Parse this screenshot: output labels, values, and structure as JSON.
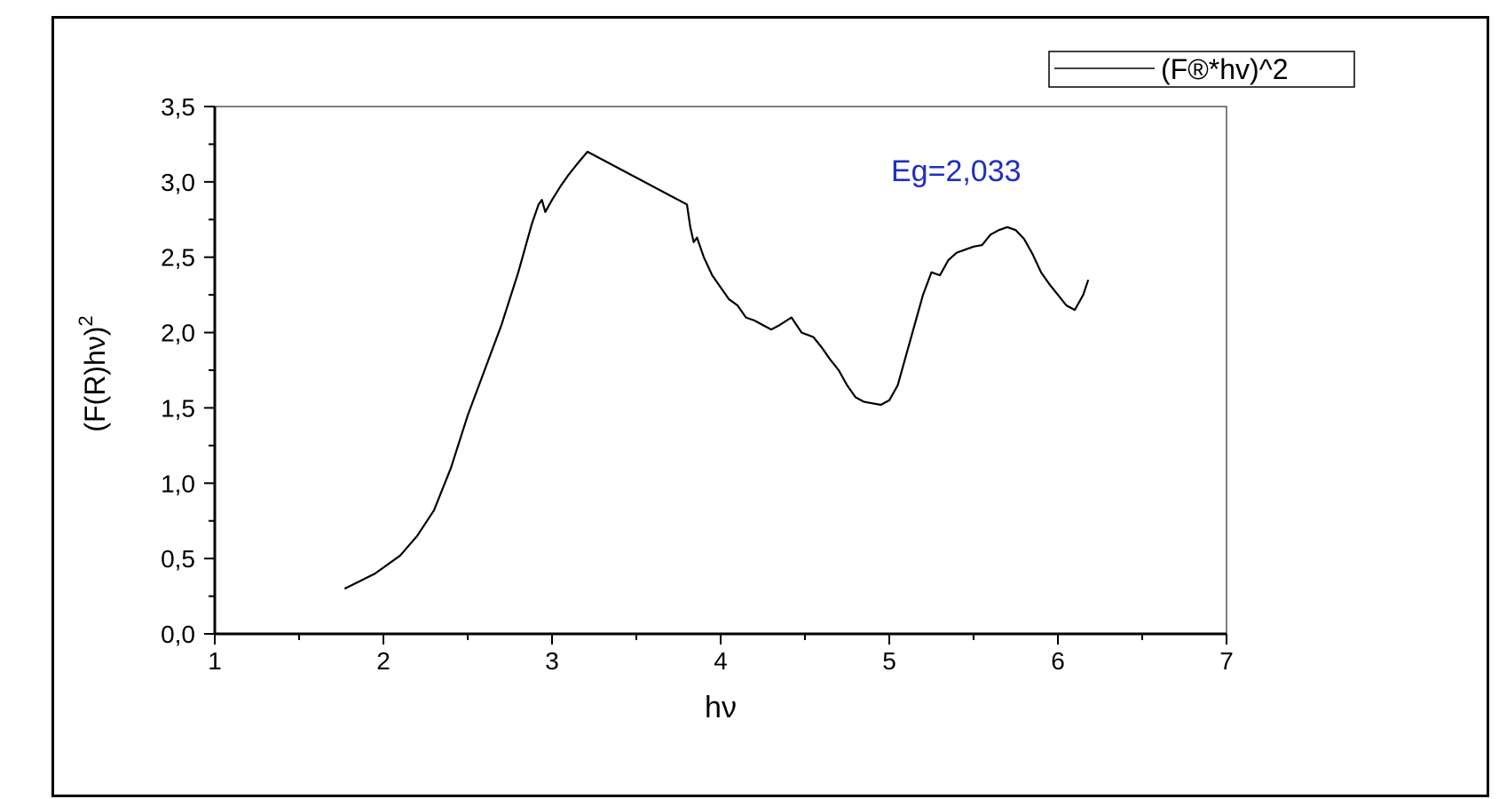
{
  "chart_data": {
    "type": "line",
    "title": "",
    "xlabel": "hν",
    "ylabel_main": "(F(R)hν)",
    "ylabel_sup": "2",
    "xlim": [
      1,
      7
    ],
    "ylim": [
      0,
      3.5
    ],
    "x_ticks": [
      1,
      2,
      3,
      4,
      5,
      6,
      7
    ],
    "x_tick_labels": [
      "1",
      "2",
      "3",
      "4",
      "5",
      "6",
      "7"
    ],
    "y_ticks": [
      0,
      0.5,
      1,
      1.5,
      2,
      2.5,
      3,
      3.5
    ],
    "y_tick_labels": [
      "0,0",
      "0,5",
      "1,0",
      "1,5",
      "2,0",
      "2,5",
      "3,0",
      "3,5"
    ],
    "legend_position": "top-right",
    "grid": false,
    "annotation": {
      "text": "Eg=2,033",
      "color": "#1f2fbf",
      "x": 4.0,
      "y": 3.05
    },
    "series": [
      {
        "name": "(F®*hv)^2",
        "color": "#000000",
        "points": [
          [
            1.77,
            0.3
          ],
          [
            1.95,
            0.4
          ],
          [
            2.1,
            0.52
          ],
          [
            2.2,
            0.65
          ],
          [
            2.3,
            0.82
          ],
          [
            2.4,
            1.1
          ],
          [
            2.5,
            1.45
          ],
          [
            2.6,
            1.75
          ],
          [
            2.7,
            2.05
          ],
          [
            2.8,
            2.4
          ],
          [
            2.88,
            2.72
          ],
          [
            2.92,
            2.85
          ],
          [
            2.94,
            2.88
          ],
          [
            2.96,
            2.8
          ],
          [
            3.0,
            2.88
          ],
          [
            3.05,
            2.97
          ],
          [
            3.1,
            3.05
          ],
          [
            3.15,
            3.12
          ],
          [
            3.21,
            3.2
          ],
          [
            3.8,
            2.85
          ],
          [
            3.82,
            2.7
          ],
          [
            3.84,
            2.6
          ],
          [
            3.86,
            2.63
          ],
          [
            3.9,
            2.5
          ],
          [
            3.95,
            2.38
          ],
          [
            4.0,
            2.3
          ],
          [
            4.05,
            2.22
          ],
          [
            4.1,
            2.18
          ],
          [
            4.15,
            2.1
          ],
          [
            4.2,
            2.08
          ],
          [
            4.25,
            2.05
          ],
          [
            4.3,
            2.02
          ],
          [
            4.35,
            2.05
          ],
          [
            4.42,
            2.1
          ],
          [
            4.48,
            2.0
          ],
          [
            4.55,
            1.97
          ],
          [
            4.6,
            1.9
          ],
          [
            4.65,
            1.82
          ],
          [
            4.7,
            1.75
          ],
          [
            4.75,
            1.65
          ],
          [
            4.8,
            1.57
          ],
          [
            4.85,
            1.54
          ],
          [
            4.9,
            1.53
          ],
          [
            4.95,
            1.52
          ],
          [
            5.0,
            1.55
          ],
          [
            5.05,
            1.65
          ],
          [
            5.1,
            1.85
          ],
          [
            5.15,
            2.05
          ],
          [
            5.2,
            2.25
          ],
          [
            5.25,
            2.4
          ],
          [
            5.3,
            2.38
          ],
          [
            5.35,
            2.48
          ],
          [
            5.4,
            2.53
          ],
          [
            5.45,
            2.55
          ],
          [
            5.5,
            2.57
          ],
          [
            5.55,
            2.58
          ],
          [
            5.6,
            2.65
          ],
          [
            5.65,
            2.68
          ],
          [
            5.7,
            2.7
          ],
          [
            5.75,
            2.68
          ],
          [
            5.8,
            2.62
          ],
          [
            5.85,
            2.52
          ],
          [
            5.9,
            2.4
          ],
          [
            5.95,
            2.32
          ],
          [
            6.0,
            2.25
          ],
          [
            6.05,
            2.18
          ],
          [
            6.1,
            2.15
          ],
          [
            6.15,
            2.25
          ],
          [
            6.18,
            2.35
          ]
        ]
      }
    ]
  }
}
